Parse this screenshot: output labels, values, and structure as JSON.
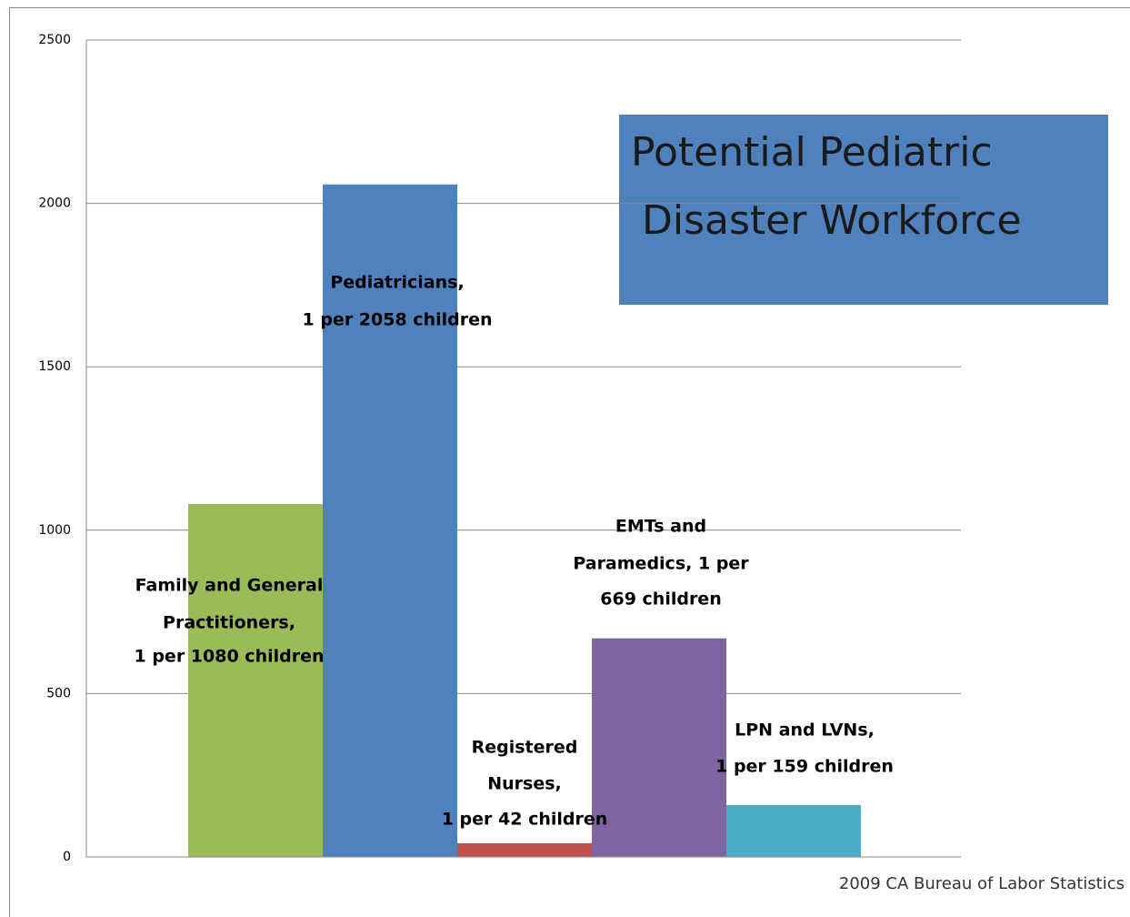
{
  "chart_data": {
    "type": "bar",
    "title": [
      "Potential Pediatric",
      "Disaster Workforce"
    ],
    "source": "2009 CA Bureau of Labor Statistics",
    "bar_labels": [
      [
        "Family and General",
        "Practitioners,",
        "1 per 1080 children"
      ],
      [
        "Pediatricians,",
        "1 per 2058 children"
      ],
      [
        "Registered",
        "Nurses,",
        "1 per 42 children"
      ],
      [
        "EMTs and",
        "Paramedics, 1 per",
        "669 children"
      ],
      [
        "LPN and LVNs,",
        "1 per 159 children"
      ]
    ],
    "values": [
      1080,
      2058,
      42,
      669,
      159
    ],
    "colors": [
      "#9bbb59",
      "#4f81bd",
      "#c0504d",
      "#8064a2",
      "#4bacc6"
    ],
    "ylim": [
      0,
      2500
    ],
    "yticks": [
      0,
      500,
      1000,
      1500,
      2000,
      2500
    ],
    "grid": true
  }
}
